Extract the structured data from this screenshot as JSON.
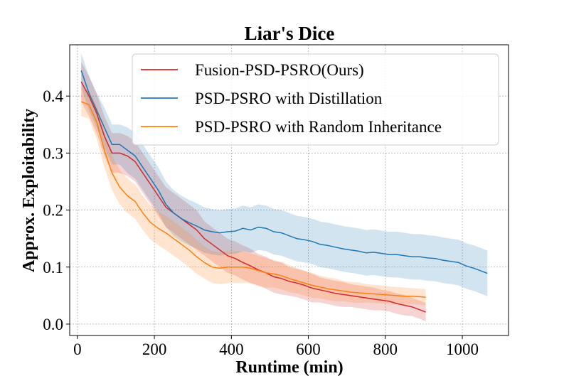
{
  "chart_data": {
    "type": "line",
    "title": "Liar's Dice",
    "xlabel": "Runtime (min)",
    "ylabel": "Approx. Exploitability",
    "xlim": [
      -20,
      1120
    ],
    "ylim": [
      -0.02,
      0.49
    ],
    "xticks": [
      0,
      200,
      400,
      600,
      800,
      1000
    ],
    "yticks": [
      0.0,
      0.1,
      0.2,
      0.3,
      0.4
    ],
    "xtick_labels": [
      "0",
      "200",
      "400",
      "600",
      "800",
      "1000"
    ],
    "ytick_labels": [
      "0.0",
      "0.1",
      "0.2",
      "0.3",
      "0.4"
    ],
    "grid": true,
    "legend_position": "top-right",
    "series": [
      {
        "name": "Fusion-PSD-PSRO(Ours)",
        "color": "#d62728",
        "x": [
          10,
          30,
          50,
          70,
          90,
          110,
          130,
          150,
          170,
          190,
          210,
          230,
          250,
          270,
          290,
          310,
          330,
          350,
          370,
          390,
          410,
          430,
          450,
          470,
          490,
          510,
          530,
          550,
          570,
          590,
          610,
          630,
          650,
          670,
          690,
          710,
          730,
          750,
          770,
          790,
          810,
          830,
          850,
          870,
          890,
          905
        ],
        "y": [
          0.425,
          0.4,
          0.37,
          0.33,
          0.3,
          0.3,
          0.295,
          0.285,
          0.265,
          0.245,
          0.225,
          0.205,
          0.195,
          0.185,
          0.175,
          0.165,
          0.15,
          0.14,
          0.13,
          0.12,
          0.115,
          0.108,
          0.102,
          0.095,
          0.09,
          0.083,
          0.08,
          0.075,
          0.072,
          0.068,
          0.063,
          0.06,
          0.057,
          0.054,
          0.052,
          0.05,
          0.048,
          0.046,
          0.044,
          0.042,
          0.04,
          0.036,
          0.033,
          0.03,
          0.025,
          0.021
        ],
        "band": [
          0.035,
          0.035,
          0.035,
          0.035,
          0.035,
          0.035,
          0.035,
          0.035,
          0.035,
          0.035,
          0.035,
          0.035,
          0.035,
          0.035,
          0.035,
          0.035,
          0.03,
          0.03,
          0.03,
          0.03,
          0.03,
          0.03,
          0.03,
          0.028,
          0.028,
          0.028,
          0.028,
          0.025,
          0.025,
          0.025,
          0.025,
          0.022,
          0.022,
          0.022,
          0.022,
          0.02,
          0.02,
          0.02,
          0.02,
          0.018,
          0.018,
          0.018,
          0.018,
          0.016,
          0.016,
          0.016
        ]
      },
      {
        "name": "PSD-PSRO with Distillation",
        "color": "#1f77b4",
        "x": [
          10,
          30,
          50,
          70,
          90,
          110,
          130,
          150,
          170,
          190,
          210,
          230,
          250,
          270,
          290,
          310,
          330,
          350,
          370,
          390,
          410,
          430,
          450,
          470,
          490,
          510,
          530,
          550,
          570,
          590,
          610,
          630,
          650,
          670,
          690,
          710,
          730,
          750,
          770,
          790,
          810,
          830,
          850,
          870,
          890,
          910,
          930,
          950,
          970,
          990,
          1010,
          1030,
          1050,
          1065
        ],
        "y": [
          0.445,
          0.405,
          0.375,
          0.345,
          0.315,
          0.315,
          0.305,
          0.295,
          0.275,
          0.255,
          0.235,
          0.21,
          0.195,
          0.185,
          0.178,
          0.172,
          0.165,
          0.162,
          0.16,
          0.162,
          0.163,
          0.168,
          0.165,
          0.17,
          0.168,
          0.162,
          0.16,
          0.155,
          0.15,
          0.148,
          0.145,
          0.14,
          0.138,
          0.135,
          0.132,
          0.13,
          0.128,
          0.125,
          0.126,
          0.124,
          0.122,
          0.122,
          0.12,
          0.118,
          0.118,
          0.116,
          0.115,
          0.112,
          0.11,
          0.108,
          0.102,
          0.098,
          0.093,
          0.089
        ],
        "band": [
          0.03,
          0.03,
          0.03,
          0.035,
          0.035,
          0.035,
          0.04,
          0.04,
          0.04,
          0.04,
          0.04,
          0.04,
          0.04,
          0.04,
          0.04,
          0.04,
          0.04,
          0.04,
          0.04,
          0.04,
          0.04,
          0.04,
          0.04,
          0.04,
          0.04,
          0.04,
          0.04,
          0.04,
          0.04,
          0.04,
          0.04,
          0.04,
          0.04,
          0.04,
          0.04,
          0.04,
          0.04,
          0.04,
          0.04,
          0.04,
          0.04,
          0.04,
          0.04,
          0.04,
          0.04,
          0.04,
          0.04,
          0.04,
          0.04,
          0.04,
          0.04,
          0.04,
          0.04,
          0.04
        ]
      },
      {
        "name": "PSD-PSRO with Random Inheritance",
        "color": "#ff7f0e",
        "x": [
          10,
          30,
          50,
          70,
          90,
          110,
          130,
          150,
          170,
          190,
          210,
          230,
          250,
          270,
          290,
          310,
          330,
          350,
          370,
          390,
          410,
          430,
          450,
          470,
          490,
          510,
          530,
          550,
          570,
          590,
          610,
          630,
          650,
          670,
          690,
          710,
          730,
          750,
          770,
          790,
          810,
          830,
          850,
          870,
          890,
          905
        ],
        "y": [
          0.39,
          0.385,
          0.355,
          0.305,
          0.265,
          0.24,
          0.225,
          0.215,
          0.195,
          0.178,
          0.168,
          0.16,
          0.15,
          0.14,
          0.13,
          0.118,
          0.108,
          0.1,
          0.098,
          0.1,
          0.1,
          0.1,
          0.098,
          0.094,
          0.09,
          0.088,
          0.085,
          0.08,
          0.076,
          0.072,
          0.068,
          0.065,
          0.062,
          0.06,
          0.058,
          0.056,
          0.055,
          0.054,
          0.053,
          0.052,
          0.051,
          0.05,
          0.049,
          0.049,
          0.048,
          0.047
        ],
        "band": [
          0.025,
          0.025,
          0.03,
          0.03,
          0.03,
          0.03,
          0.03,
          0.03,
          0.03,
          0.03,
          0.03,
          0.03,
          0.03,
          0.03,
          0.03,
          0.03,
          0.028,
          0.028,
          0.028,
          0.028,
          0.028,
          0.028,
          0.026,
          0.026,
          0.026,
          0.024,
          0.024,
          0.024,
          0.022,
          0.022,
          0.022,
          0.02,
          0.02,
          0.02,
          0.018,
          0.018,
          0.018,
          0.016,
          0.016,
          0.016,
          0.015,
          0.015,
          0.015,
          0.014,
          0.014,
          0.014
        ]
      }
    ]
  }
}
